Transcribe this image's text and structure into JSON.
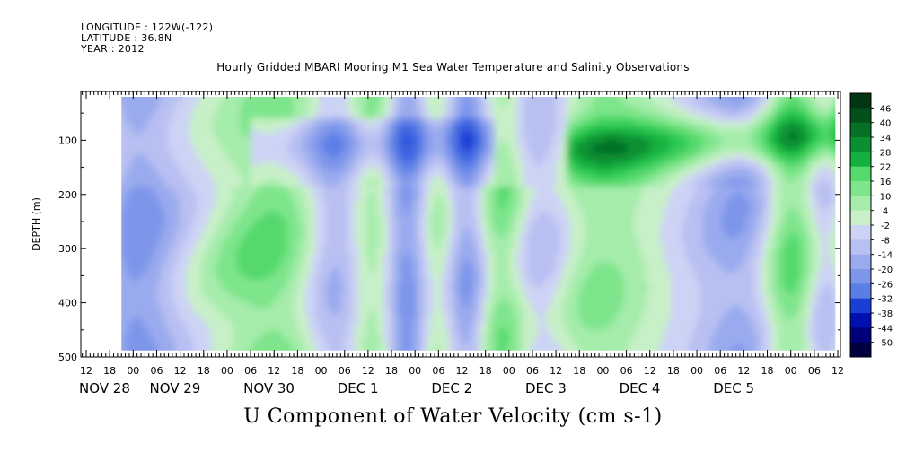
{
  "header": {
    "longitude": "LONGITUDE : 122W(-122)",
    "latitude": "LATITUDE : 36.8N",
    "year": "YEAR : 2012"
  },
  "chart_data": {
    "type": "heatmap",
    "title": "Hourly Gridded MBARI Mooring M1 Sea Water Temperature and Salinity Observations",
    "variable_label": "U Component of Water Velocity (cm s-1)",
    "ylabel": "DEPTH (m)",
    "ylim": [
      500,
      10
    ],
    "y_ticks": [
      100,
      200,
      300,
      400,
      500
    ],
    "x_hour_ticks": [
      "12",
      "18",
      "00",
      "06",
      "12",
      "18",
      "00",
      "06",
      "12",
      "18",
      "00",
      "06",
      "12",
      "18",
      "00",
      "06",
      "12",
      "18",
      "00",
      "06",
      "12",
      "18",
      "00",
      "06",
      "12",
      "18",
      "00",
      "06",
      "12",
      "18",
      "00",
      "06",
      "12"
    ],
    "x_day_labels": [
      "NOV 28",
      "NOV 29",
      "NOV 30",
      "DEC  1",
      "DEC  2",
      "DEC  3",
      "DEC  4",
      "DEC  5"
    ],
    "x_day_label_tick_index": [
      0,
      3,
      7,
      11,
      15,
      19,
      23,
      27
    ],
    "data_start_hour_index": 1.5,
    "data_end_hour_index": 31.9,
    "colorbar": {
      "labels": [
        "46",
        "40",
        "34",
        "28",
        "22",
        "16",
        "10",
        "4",
        "-2",
        "-8",
        "-14",
        "-20",
        "-26",
        "-32",
        "-38",
        "-44",
        "-50"
      ],
      "range": [
        -50,
        52
      ],
      "colors": [
        "#000040",
        "#00007a",
        "#0010b0",
        "#1a3fd6",
        "#3d63e0",
        "#5b7ee6",
        "#7e96ea",
        "#9aaaee",
        "#b8c0f2",
        "#cdd3f5",
        "#c8f0c8",
        "#a6ecab",
        "#7ee58c",
        "#55d96d",
        "#2ec954",
        "#14b040",
        "#0a9032",
        "#057026",
        "#03501b",
        "#023512"
      ]
    },
    "depth_bands": [
      {
        "name": "surface (~20-80 m)",
        "pattern": "mixed green/blue, green Nov 28-30 and Dec 3-5"
      },
      {
        "name": "thermocline (~100-180 m)",
        "pattern": "blue Nov 29-Dec 1, strong green core Dec 3-5 (~20-40)"
      },
      {
        "name": "deep (~200-480 m)",
        "pattern": "vertical alternating green/blue streaks, values ~ -20 to 20"
      }
    ]
  }
}
